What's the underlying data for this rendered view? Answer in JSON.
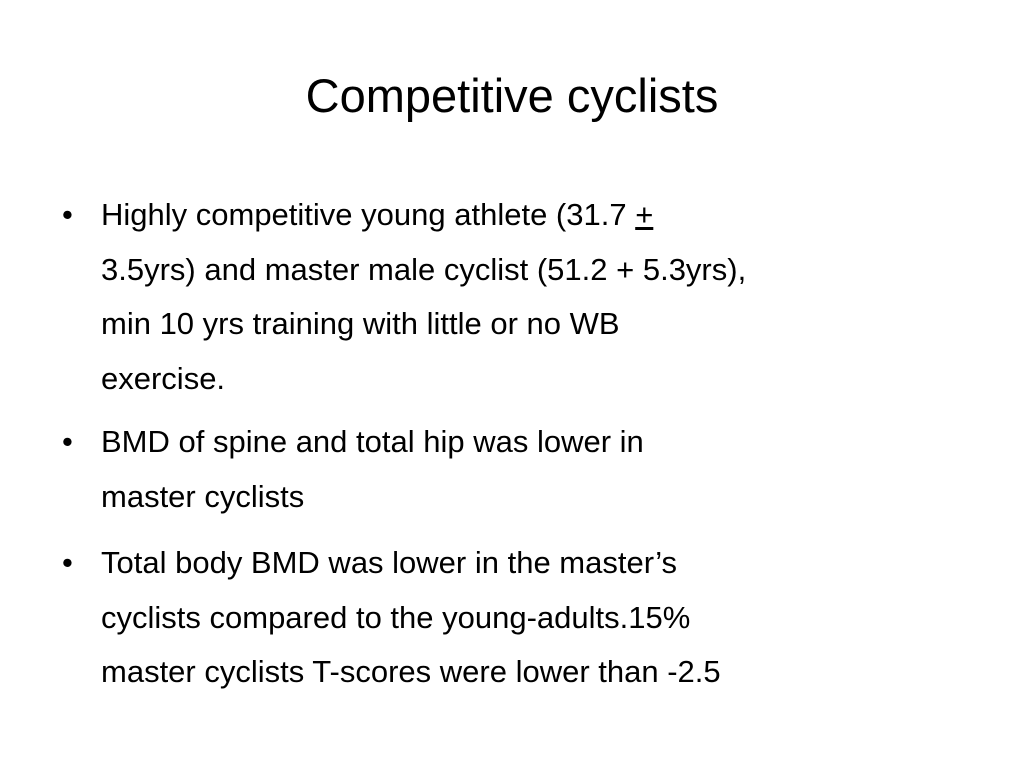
{
  "title": "Competitive cyclists",
  "bullets": [
    {
      "lines": [
        {
          "text": "Highly competitive young athlete (31.7 ",
          "underlined": "+"
        },
        {
          "text": "3.5yrs) and master male cyclist (51.2 + 5.3yrs),"
        },
        {
          "text": "min 10 yrs training with little or no WB"
        },
        {
          "text": "exercise."
        }
      ]
    },
    {
      "lines": [
        {
          "text": "BMD of spine and total hip was lower in"
        },
        {
          "text": "master cyclists"
        }
      ]
    },
    {
      "lines": [
        {
          "text": "Total body BMD was lower in the master’s"
        },
        {
          "text": "cyclists compared to the young-adults.15%"
        },
        {
          "text": "master cyclists T-scores were lower than -2.5"
        }
      ]
    }
  ]
}
